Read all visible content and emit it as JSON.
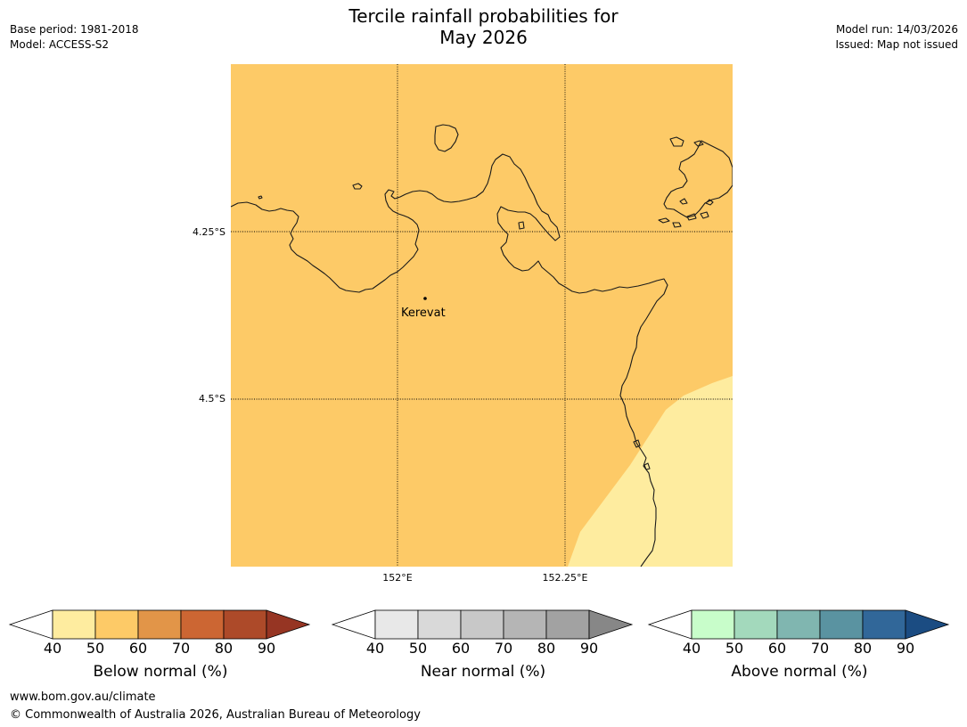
{
  "header": {
    "title_line1": "Tercile rainfall probabilities for",
    "title_line2": "May 2026",
    "base_period": "Base period: 1981-2018",
    "model": "Model: ACCESS-S2",
    "model_run": "Model run: 14/03/2026",
    "issued": "Issued: Map not issued"
  },
  "map": {
    "region_colors": {
      "below_normal_50_60": "#fdca67",
      "below_normal_40_50": "#feec9f"
    },
    "coastline_color": "#1a1a1a",
    "place": {
      "name": "Kerevat"
    },
    "lat_labels": [
      "4.25°S",
      "4.5°S"
    ],
    "lon_labels": [
      "152°E",
      "152.25°E"
    ]
  },
  "colorbars": [
    {
      "label": "Below normal (%)",
      "ticks": [
        "40",
        "50",
        "60",
        "70",
        "80",
        "90"
      ],
      "low_color": "#ffffff",
      "colors": [
        "#feec9f",
        "#fdca67",
        "#e29548",
        "#cc6633",
        "#ad4a29"
      ],
      "high_color": "#963523"
    },
    {
      "label": "Near normal (%)",
      "ticks": [
        "40",
        "50",
        "60",
        "70",
        "80",
        "90"
      ],
      "low_color": "#ffffff",
      "colors": [
        "#e8e8e8",
        "#d9d9d9",
        "#c8c8c8",
        "#b5b5b5",
        "#a2a2a2"
      ],
      "high_color": "#878787"
    },
    {
      "label": "Above normal (%)",
      "ticks": [
        "40",
        "50",
        "60",
        "70",
        "80",
        "90"
      ],
      "low_color": "#ffffff",
      "colors": [
        "#c8fdca",
        "#a3d9bc",
        "#80b6b0",
        "#5a93a1",
        "#316799"
      ],
      "high_color": "#1b4c82"
    }
  ],
  "footer": {
    "url": "www.bom.gov.au/climate",
    "copyright": "© Commonwealth of Australia 2026, Australian Bureau of Meteorology"
  }
}
